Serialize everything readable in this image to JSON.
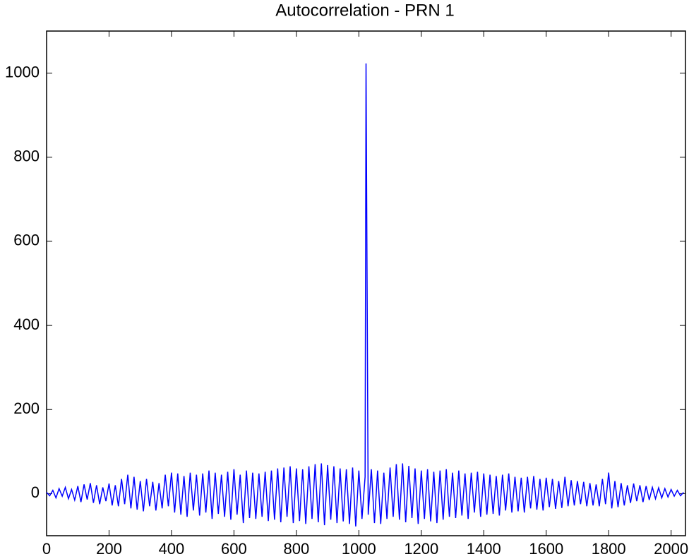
{
  "chart_data": {
    "type": "line",
    "title": "Autocorrelation - PRN 1",
    "color": "#0000ff",
    "xlim": [
      0,
      2046
    ],
    "ylim": [
      -100,
      1100
    ],
    "xticks": [
      0,
      200,
      400,
      600,
      800,
      1000,
      1200,
      1400,
      1600,
      1800,
      2000
    ],
    "yticks": [
      0,
      200,
      400,
      600,
      800,
      1000
    ],
    "x": [
      0,
      10,
      20,
      30,
      40,
      50,
      60,
      70,
      80,
      90,
      100,
      110,
      120,
      130,
      140,
      150,
      160,
      170,
      180,
      190,
      200,
      210,
      220,
      230,
      240,
      250,
      260,
      270,
      280,
      290,
      300,
      310,
      320,
      330,
      340,
      350,
      360,
      370,
      380,
      390,
      400,
      410,
      420,
      430,
      440,
      450,
      460,
      470,
      480,
      490,
      500,
      510,
      520,
      530,
      540,
      550,
      560,
      570,
      580,
      590,
      600,
      610,
      620,
      630,
      640,
      650,
      660,
      670,
      680,
      690,
      700,
      710,
      720,
      730,
      740,
      750,
      760,
      770,
      780,
      790,
      800,
      810,
      820,
      830,
      840,
      850,
      860,
      870,
      880,
      890,
      900,
      910,
      920,
      930,
      940,
      950,
      960,
      970,
      980,
      990,
      1000,
      1010,
      1020,
      1023,
      1030,
      1040,
      1050,
      1060,
      1070,
      1080,
      1090,
      1100,
      1110,
      1120,
      1130,
      1140,
      1150,
      1160,
      1170,
      1180,
      1190,
      1200,
      1210,
      1220,
      1230,
      1240,
      1250,
      1260,
      1270,
      1280,
      1290,
      1300,
      1310,
      1320,
      1330,
      1340,
      1350,
      1360,
      1370,
      1380,
      1390,
      1400,
      1410,
      1420,
      1430,
      1440,
      1450,
      1460,
      1470,
      1480,
      1490,
      1500,
      1510,
      1520,
      1530,
      1540,
      1550,
      1560,
      1570,
      1580,
      1590,
      1600,
      1610,
      1620,
      1630,
      1640,
      1650,
      1660,
      1670,
      1680,
      1690,
      1700,
      1710,
      1720,
      1730,
      1740,
      1750,
      1760,
      1770,
      1780,
      1790,
      1800,
      1810,
      1820,
      1830,
      1840,
      1850,
      1860,
      1870,
      1880,
      1890,
      1900,
      1910,
      1920,
      1930,
      1940,
      1950,
      1960,
      1970,
      1980,
      1990,
      2000,
      2010,
      2020,
      2030,
      2040
    ],
    "values": [
      3,
      -5,
      8,
      -10,
      12,
      -6,
      15,
      -12,
      10,
      -15,
      18,
      -20,
      22,
      -14,
      25,
      -22,
      20,
      -25,
      15,
      -18,
      24,
      -28,
      20,
      -30,
      35,
      -25,
      45,
      -35,
      40,
      -38,
      30,
      -42,
      35,
      -30,
      28,
      -40,
      25,
      -35,
      45,
      -30,
      50,
      -45,
      48,
      -50,
      42,
      -55,
      50,
      -40,
      45,
      -52,
      48,
      -45,
      55,
      -60,
      50,
      -48,
      45,
      -55,
      52,
      -62,
      58,
      -50,
      45,
      -70,
      55,
      -58,
      50,
      -60,
      48,
      -55,
      52,
      -65,
      55,
      -62,
      60,
      -68,
      62,
      -55,
      65,
      -70,
      60,
      -65,
      58,
      -72,
      65,
      -60,
      70,
      -68,
      72,
      -75,
      68,
      -62,
      65,
      -70,
      60,
      -66,
      58,
      -72,
      62,
      -78,
      55,
      -60,
      40,
      1023,
      -50,
      58,
      -70,
      55,
      -72,
      50,
      -60,
      62,
      -55,
      70,
      -62,
      72,
      -68,
      66,
      -58,
      60,
      -72,
      55,
      -60,
      58,
      -66,
      52,
      -70,
      55,
      -62,
      58,
      -55,
      50,
      -58,
      55,
      -52,
      48,
      -60,
      50,
      -45,
      52,
      -55,
      48,
      -50,
      45,
      -48,
      42,
      -52,
      45,
      -40,
      48,
      -45,
      40,
      -42,
      38,
      -45,
      40,
      -35,
      42,
      -38,
      35,
      -40,
      38,
      -32,
      35,
      -36,
      30,
      -34,
      40,
      -30,
      32,
      -28,
      30,
      -25,
      28,
      -30,
      25,
      -28,
      22,
      -30,
      35,
      -25,
      50,
      -35,
      30,
      -32,
      25,
      -28,
      20,
      -22,
      24,
      -18,
      20,
      -20,
      18,
      -15,
      15,
      -12,
      14,
      -10,
      12,
      -8,
      10,
      -6,
      8,
      -5,
      3
    ]
  }
}
